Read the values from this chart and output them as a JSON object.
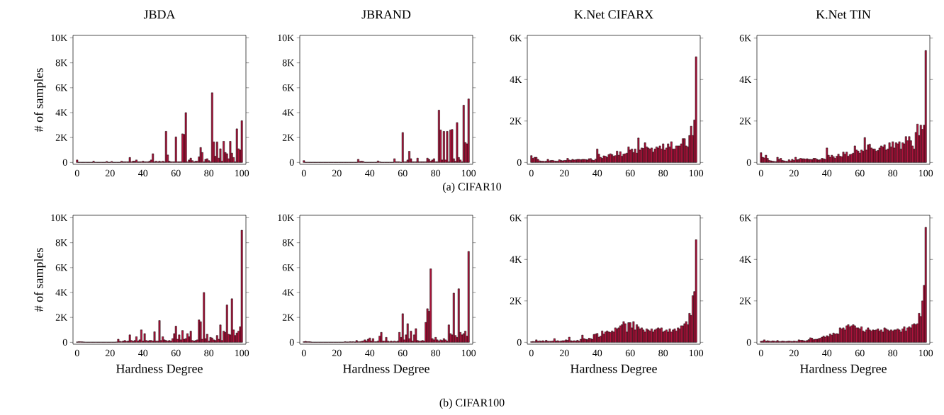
{
  "chart_data": [
    {
      "type": "bar",
      "title": "JBDA",
      "ylabel": "# of samples",
      "annotations": [
        "(a) CIFAR10"
      ],
      "color": "#b0133c",
      "xlim": [
        -2.5,
        102.5
      ],
      "ylim": [
        -150,
        10200
      ],
      "xticks": [
        0,
        20,
        40,
        60,
        80,
        100
      ],
      "yticks": [
        0,
        {
          "value": 2000,
          "label": "2K"
        },
        {
          "value": 4000,
          "label": "4K"
        },
        {
          "value": 6000,
          "label": "6K"
        },
        {
          "value": 8000,
          "label": "8K"
        },
        {
          "value": 10000,
          "label": "10K"
        }
      ],
      "x": [
        0,
        1,
        2,
        3,
        4,
        5,
        6,
        7,
        8,
        9,
        10,
        11,
        12,
        13,
        14,
        15,
        16,
        17,
        18,
        19,
        20,
        21,
        22,
        23,
        24,
        25,
        26,
        27,
        28,
        29,
        30,
        31,
        32,
        33,
        34,
        35,
        36,
        37,
        38,
        39,
        40,
        41,
        42,
        43,
        44,
        45,
        46,
        47,
        48,
        49,
        50,
        51,
        52,
        53,
        54,
        55,
        56,
        57,
        58,
        59,
        60,
        61,
        62,
        63,
        64,
        65,
        66,
        67,
        68,
        69,
        70,
        71,
        72,
        73,
        74,
        75,
        76,
        77,
        78,
        79,
        80,
        81,
        82,
        83,
        84,
        85,
        86,
        87,
        88,
        89,
        90,
        91,
        92,
        93,
        94,
        95,
        96,
        97,
        98,
        99,
        100
      ],
      "values": [
        200,
        20,
        20,
        20,
        20,
        20,
        20,
        20,
        20,
        20,
        100,
        20,
        20,
        20,
        20,
        20,
        20,
        20,
        80,
        20,
        20,
        80,
        20,
        20,
        20,
        20,
        20,
        100,
        50,
        50,
        50,
        50,
        400,
        50,
        100,
        100,
        200,
        50,
        50,
        50,
        100,
        50,
        50,
        50,
        100,
        200,
        700,
        50,
        100,
        50,
        100,
        50,
        100,
        50,
        2500,
        600,
        100,
        50,
        50,
        50,
        2050,
        50,
        50,
        50,
        2300,
        2250,
        4000,
        50,
        200,
        350,
        150,
        50,
        100,
        100,
        450,
        1200,
        800,
        50,
        250,
        300,
        150,
        50,
        5600,
        1650,
        500,
        1650,
        350,
        1100,
        100,
        1700,
        800,
        700,
        300,
        1700,
        750,
        400,
        50,
        2700,
        1100,
        1000,
        3350
      ]
    },
    {
      "type": "bar",
      "title": "JBRAND",
      "color": "#b0133c",
      "xlim": [
        -2.5,
        102.5
      ],
      "ylim": [
        -150,
        10200
      ],
      "xticks": [
        0,
        20,
        40,
        60,
        80,
        100
      ],
      "yticks": [
        0,
        {
          "value": 2000,
          "label": "2K"
        },
        {
          "value": 4000,
          "label": "4K"
        },
        {
          "value": 6000,
          "label": "6K"
        },
        {
          "value": 8000,
          "label": "8K"
        },
        {
          "value": 10000,
          "label": "10K"
        }
      ],
      "x": [
        0,
        1,
        2,
        3,
        4,
        5,
        6,
        7,
        8,
        9,
        10,
        11,
        12,
        13,
        14,
        15,
        16,
        17,
        18,
        19,
        20,
        21,
        22,
        23,
        24,
        25,
        26,
        27,
        28,
        29,
        30,
        31,
        32,
        33,
        34,
        35,
        36,
        37,
        38,
        39,
        40,
        41,
        42,
        43,
        44,
        45,
        46,
        47,
        48,
        49,
        50,
        51,
        52,
        53,
        54,
        55,
        56,
        57,
        58,
        59,
        60,
        61,
        62,
        63,
        64,
        65,
        66,
        67,
        68,
        69,
        70,
        71,
        72,
        73,
        74,
        75,
        76,
        77,
        78,
        79,
        80,
        81,
        82,
        83,
        84,
        85,
        86,
        87,
        88,
        89,
        90,
        91,
        92,
        93,
        94,
        95,
        96,
        97,
        98,
        99,
        100
      ],
      "values": [
        150,
        20,
        20,
        20,
        20,
        20,
        20,
        20,
        20,
        20,
        20,
        20,
        20,
        20,
        20,
        20,
        20,
        20,
        20,
        20,
        20,
        20,
        20,
        20,
        20,
        20,
        20,
        20,
        20,
        20,
        20,
        20,
        20,
        250,
        80,
        100,
        80,
        20,
        20,
        20,
        20,
        20,
        20,
        20,
        20,
        120,
        50,
        20,
        20,
        20,
        20,
        20,
        20,
        20,
        20,
        300,
        50,
        50,
        50,
        20,
        2400,
        50,
        50,
        200,
        900,
        300,
        50,
        50,
        50,
        350,
        50,
        50,
        50,
        50,
        50,
        350,
        250,
        100,
        200,
        300,
        50,
        50,
        4200,
        2600,
        200,
        2500,
        200,
        2500,
        50,
        2600,
        2650,
        300,
        100,
        3200,
        400,
        200,
        50,
        4600,
        1600,
        1500,
        5100
      ]
    },
    {
      "type": "bar",
      "title": "K.Net CIFARX",
      "color": "#b0133c",
      "xlim": [
        -2.5,
        102.5
      ],
      "ylim": [
        -90,
        6130
      ],
      "xticks": [
        0,
        20,
        40,
        60,
        80,
        100
      ],
      "yticks": [
        0,
        {
          "value": 2000,
          "label": "2K"
        },
        {
          "value": 4000,
          "label": "4K"
        },
        {
          "value": 6000,
          "label": "6K"
        }
      ],
      "x": [
        0,
        1,
        2,
        3,
        4,
        5,
        6,
        7,
        8,
        9,
        10,
        11,
        12,
        13,
        14,
        15,
        16,
        17,
        18,
        19,
        20,
        21,
        22,
        23,
        24,
        25,
        26,
        27,
        28,
        29,
        30,
        31,
        32,
        33,
        34,
        35,
        36,
        37,
        38,
        39,
        40,
        41,
        42,
        43,
        44,
        45,
        46,
        47,
        48,
        49,
        50,
        51,
        52,
        53,
        54,
        55,
        56,
        57,
        58,
        59,
        60,
        61,
        62,
        63,
        64,
        65,
        66,
        67,
        68,
        69,
        70,
        71,
        72,
        73,
        74,
        75,
        76,
        77,
        78,
        79,
        80,
        81,
        82,
        83,
        84,
        85,
        86,
        87,
        88,
        89,
        90,
        91,
        92,
        93,
        94,
        95,
        96,
        97,
        98,
        99,
        100
      ],
      "values": [
        330,
        200,
        250,
        250,
        150,
        80,
        60,
        60,
        50,
        60,
        150,
        80,
        100,
        100,
        70,
        60,
        60,
        130,
        100,
        80,
        100,
        100,
        200,
        120,
        100,
        150,
        120,
        130,
        150,
        150,
        130,
        150,
        150,
        140,
        120,
        180,
        190,
        120,
        100,
        160,
        650,
        400,
        250,
        200,
        320,
        300,
        250,
        380,
        420,
        380,
        300,
        330,
        550,
        350,
        520,
        300,
        400,
        420,
        450,
        750,
        600,
        650,
        480,
        650,
        450,
        1180,
        600,
        700,
        680,
        950,
        750,
        700,
        650,
        700,
        500,
        650,
        750,
        700,
        800,
        650,
        900,
        600,
        700,
        900,
        750,
        1000,
        650,
        650,
        800,
        800,
        800,
        900,
        1150,
        1150,
        800,
        750,
        1300,
        1750,
        1300,
        2050,
        5100
      ]
    },
    {
      "type": "bar",
      "title": "K.Net TIN",
      "color": "#b0133c",
      "xlim": [
        -2.5,
        102.5
      ],
      "ylim": [
        -90,
        6130
      ],
      "xticks": [
        0,
        20,
        40,
        60,
        80,
        100
      ],
      "yticks": [
        0,
        {
          "value": 2000,
          "label": "2K"
        },
        {
          "value": 4000,
          "label": "4K"
        },
        {
          "value": 6000,
          "label": "6K"
        }
      ],
      "x": [
        0,
        1,
        2,
        3,
        4,
        5,
        6,
        7,
        8,
        9,
        10,
        11,
        12,
        13,
        14,
        15,
        16,
        17,
        18,
        19,
        20,
        21,
        22,
        23,
        24,
        25,
        26,
        27,
        28,
        29,
        30,
        31,
        32,
        33,
        34,
        35,
        36,
        37,
        38,
        39,
        40,
        41,
        42,
        43,
        44,
        45,
        46,
        47,
        48,
        49,
        50,
        51,
        52,
        53,
        54,
        55,
        56,
        57,
        58,
        59,
        60,
        61,
        62,
        63,
        64,
        65,
        66,
        67,
        68,
        69,
        70,
        71,
        72,
        73,
        74,
        75,
        76,
        77,
        78,
        79,
        80,
        81,
        82,
        83,
        84,
        85,
        86,
        87,
        88,
        89,
        90,
        91,
        92,
        93,
        94,
        95,
        96,
        97,
        98,
        99,
        100
      ],
      "values": [
        470,
        250,
        220,
        350,
        200,
        100,
        80,
        60,
        50,
        40,
        250,
        150,
        200,
        100,
        80,
        60,
        50,
        130,
        80,
        150,
        100,
        250,
        130,
        150,
        200,
        180,
        180,
        160,
        180,
        150,
        150,
        140,
        200,
        200,
        150,
        120,
        130,
        200,
        180,
        150,
        700,
        350,
        250,
        350,
        280,
        200,
        300,
        400,
        300,
        280,
        500,
        400,
        500,
        300,
        380,
        400,
        450,
        800,
        600,
        550,
        450,
        600,
        550,
        1200,
        600,
        850,
        880,
        700,
        650,
        650,
        550,
        580,
        700,
        800,
        750,
        850,
        600,
        650,
        950,
        750,
        1000,
        700,
        950,
        900,
        1000,
        650,
        950,
        900,
        1250,
        1050,
        1250,
        1050,
        800,
        650,
        1450,
        1850,
        1300,
        1800,
        1600,
        1800,
        5400
      ]
    },
    {
      "type": "bar",
      "xlabel": "Hardness Degree",
      "ylabel": "# of samples",
      "annotations": [
        "(b) CIFAR100"
      ],
      "color": "#b0133c",
      "xlim": [
        -2.5,
        102.5
      ],
      "ylim": [
        -150,
        10200
      ],
      "xticks": [
        0,
        20,
        40,
        60,
        80,
        100
      ],
      "yticks": [
        0,
        {
          "value": 2000,
          "label": "2K"
        },
        {
          "value": 4000,
          "label": "4K"
        },
        {
          "value": 6000,
          "label": "6K"
        },
        {
          "value": 8000,
          "label": "8K"
        },
        {
          "value": 10000,
          "label": "10K"
        }
      ],
      "x": [
        0,
        1,
        2,
        3,
        4,
        5,
        6,
        7,
        8,
        9,
        10,
        11,
        12,
        13,
        14,
        15,
        16,
        17,
        18,
        19,
        20,
        21,
        22,
        23,
        24,
        25,
        26,
        27,
        28,
        29,
        30,
        31,
        32,
        33,
        34,
        35,
        36,
        37,
        38,
        39,
        40,
        41,
        42,
        43,
        44,
        45,
        46,
        47,
        48,
        49,
        50,
        51,
        52,
        53,
        54,
        55,
        56,
        57,
        58,
        59,
        60,
        61,
        62,
        63,
        64,
        65,
        66,
        67,
        68,
        69,
        70,
        71,
        72,
        73,
        74,
        75,
        76,
        77,
        78,
        79,
        80,
        81,
        82,
        83,
        84,
        85,
        86,
        87,
        88,
        89,
        90,
        91,
        92,
        93,
        94,
        95,
        96,
        97,
        98,
        99,
        100
      ],
      "values": [
        30,
        50,
        50,
        40,
        30,
        20,
        20,
        20,
        20,
        20,
        20,
        20,
        20,
        20,
        20,
        20,
        20,
        20,
        20,
        20,
        20,
        20,
        20,
        20,
        30,
        250,
        80,
        50,
        100,
        150,
        80,
        100,
        600,
        150,
        80,
        150,
        450,
        100,
        200,
        1000,
        100,
        700,
        150,
        100,
        150,
        150,
        100,
        850,
        100,
        100,
        1750,
        150,
        450,
        200,
        150,
        100,
        150,
        100,
        300,
        700,
        1300,
        250,
        600,
        200,
        950,
        250,
        300,
        700,
        450,
        900,
        150,
        100,
        150,
        200,
        1800,
        1650,
        250,
        4000,
        300,
        650,
        100,
        400,
        350,
        200,
        150,
        550,
        250,
        1400,
        150,
        900,
        800,
        3000,
        650,
        600,
        3500,
        1000,
        550,
        750,
        900,
        1250,
        9000
      ]
    },
    {
      "type": "bar",
      "xlabel": "Hardness Degree",
      "color": "#b0133c",
      "xlim": [
        -2.5,
        102.5
      ],
      "ylim": [
        -150,
        10200
      ],
      "xticks": [
        0,
        20,
        40,
        60,
        80,
        100
      ],
      "yticks": [
        0,
        {
          "value": 2000,
          "label": "2K"
        },
        {
          "value": 4000,
          "label": "4K"
        },
        {
          "value": 6000,
          "label": "6K"
        },
        {
          "value": 8000,
          "label": "8K"
        },
        {
          "value": 10000,
          "label": "10K"
        }
      ],
      "x": [
        0,
        1,
        2,
        3,
        4,
        5,
        6,
        7,
        8,
        9,
        10,
        11,
        12,
        13,
        14,
        15,
        16,
        17,
        18,
        19,
        20,
        21,
        22,
        23,
        24,
        25,
        26,
        27,
        28,
        29,
        30,
        31,
        32,
        33,
        34,
        35,
        36,
        37,
        38,
        39,
        40,
        41,
        42,
        43,
        44,
        45,
        46,
        47,
        48,
        49,
        50,
        51,
        52,
        53,
        54,
        55,
        56,
        57,
        58,
        59,
        60,
        61,
        62,
        63,
        64,
        65,
        66,
        67,
        68,
        69,
        70,
        71,
        72,
        73,
        74,
        75,
        76,
        77,
        78,
        79,
        80,
        81,
        82,
        83,
        84,
        85,
        86,
        87,
        88,
        89,
        90,
        91,
        92,
        93,
        94,
        95,
        96,
        97,
        98,
        99,
        100
      ],
      "values": [
        50,
        80,
        50,
        50,
        40,
        20,
        20,
        20,
        20,
        20,
        20,
        20,
        20,
        20,
        20,
        20,
        20,
        20,
        20,
        20,
        20,
        20,
        20,
        20,
        20,
        50,
        30,
        30,
        50,
        40,
        50,
        30,
        150,
        50,
        50,
        80,
        100,
        200,
        100,
        250,
        350,
        100,
        300,
        50,
        50,
        100,
        500,
        800,
        100,
        100,
        400,
        100,
        50,
        100,
        50,
        100,
        50,
        100,
        800,
        400,
        2300,
        200,
        600,
        1500,
        300,
        900,
        100,
        600,
        1100,
        150,
        100,
        100,
        150,
        100,
        1600,
        2700,
        2500,
        5900,
        300,
        200,
        400,
        200,
        100,
        200,
        150,
        300,
        200,
        100,
        1400,
        700,
        600,
        3950,
        550,
        400,
        4300,
        800,
        600,
        700,
        900,
        500,
        7300
      ]
    },
    {
      "type": "bar",
      "xlabel": "Hardness Degree",
      "color": "#b0133c",
      "xlim": [
        -2.5,
        102.5
      ],
      "ylim": [
        -90,
        6130
      ],
      "xticks": [
        0,
        20,
        40,
        60,
        80,
        100
      ],
      "yticks": [
        0,
        {
          "value": 2000,
          "label": "2K"
        },
        {
          "value": 4000,
          "label": "4K"
        },
        {
          "value": 6000,
          "label": "6K"
        }
      ],
      "x": [
        0,
        1,
        2,
        3,
        4,
        5,
        6,
        7,
        8,
        9,
        10,
        11,
        12,
        13,
        14,
        15,
        16,
        17,
        18,
        19,
        20,
        21,
        22,
        23,
        24,
        25,
        26,
        27,
        28,
        29,
        30,
        31,
        32,
        33,
        34,
        35,
        36,
        37,
        38,
        39,
        40,
        41,
        42,
        43,
        44,
        45,
        46,
        47,
        48,
        49,
        50,
        51,
        52,
        53,
        54,
        55,
        56,
        57,
        58,
        59,
        60,
        61,
        62,
        63,
        64,
        65,
        66,
        67,
        68,
        69,
        70,
        71,
        72,
        73,
        74,
        75,
        76,
        77,
        78,
        79,
        80,
        81,
        82,
        83,
        84,
        85,
        86,
        87,
        88,
        89,
        90,
        91,
        92,
        93,
        94,
        95,
        96,
        97,
        98,
        99,
        100
      ],
      "values": [
        30,
        40,
        30,
        120,
        50,
        70,
        50,
        80,
        40,
        100,
        50,
        50,
        50,
        60,
        180,
        60,
        80,
        50,
        60,
        80,
        80,
        120,
        100,
        250,
        80,
        60,
        80,
        60,
        100,
        60,
        150,
        350,
        180,
        150,
        130,
        200,
        180,
        150,
        380,
        400,
        430,
        250,
        300,
        550,
        400,
        500,
        550,
        500,
        480,
        550,
        500,
        700,
        650,
        700,
        800,
        850,
        1000,
        900,
        500,
        950,
        950,
        700,
        1000,
        600,
        850,
        750,
        650,
        700,
        600,
        500,
        650,
        600,
        550,
        650,
        500,
        600,
        650,
        700,
        650,
        700,
        500,
        550,
        600,
        500,
        650,
        500,
        600,
        650,
        550,
        700,
        650,
        800,
        800,
        900,
        1000,
        850,
        1400,
        1300,
        2250,
        2450,
        4950
      ]
    },
    {
      "type": "bar",
      "xlabel": "Hardness Degree",
      "color": "#b0133c",
      "xlim": [
        -2.5,
        102.5
      ],
      "ylim": [
        -90,
        6130
      ],
      "xticks": [
        0,
        20,
        40,
        60,
        80,
        100
      ],
      "yticks": [
        0,
        {
          "value": 2000,
          "label": "2K"
        },
        {
          "value": 4000,
          "label": "4K"
        },
        {
          "value": 6000,
          "label": "6K"
        }
      ],
      "x": [
        0,
        1,
        2,
        3,
        4,
        5,
        6,
        7,
        8,
        9,
        10,
        11,
        12,
        13,
        14,
        15,
        16,
        17,
        18,
        19,
        20,
        21,
        22,
        23,
        24,
        25,
        26,
        27,
        28,
        29,
        30,
        31,
        32,
        33,
        34,
        35,
        36,
        37,
        38,
        39,
        40,
        41,
        42,
        43,
        44,
        45,
        46,
        47,
        48,
        49,
        50,
        51,
        52,
        53,
        54,
        55,
        56,
        57,
        58,
        59,
        60,
        61,
        62,
        63,
        64,
        65,
        66,
        67,
        68,
        69,
        70,
        71,
        72,
        73,
        74,
        75,
        76,
        77,
        78,
        79,
        80,
        81,
        82,
        83,
        84,
        85,
        86,
        87,
        88,
        89,
        90,
        91,
        92,
        93,
        94,
        95,
        96,
        97,
        98,
        99,
        100
      ],
      "values": [
        50,
        60,
        120,
        50,
        80,
        60,
        40,
        70,
        60,
        40,
        90,
        40,
        40,
        60,
        50,
        40,
        50,
        60,
        50,
        40,
        60,
        50,
        40,
        120,
        100,
        100,
        80,
        60,
        90,
        130,
        220,
        200,
        130,
        150,
        150,
        180,
        200,
        250,
        300,
        250,
        320,
        280,
        400,
        350,
        450,
        400,
        420,
        400,
        700,
        650,
        700,
        600,
        800,
        850,
        750,
        800,
        850,
        800,
        700,
        700,
        650,
        750,
        550,
        500,
        600,
        700,
        600,
        550,
        600,
        580,
        600,
        650,
        550,
        600,
        500,
        700,
        650,
        600,
        550,
        600,
        550,
        600,
        600,
        650,
        600,
        500,
        650,
        750,
        550,
        700,
        750,
        700,
        850,
        900,
        850,
        900,
        1400,
        1250,
        2000,
        2750,
        5550
      ]
    }
  ]
}
